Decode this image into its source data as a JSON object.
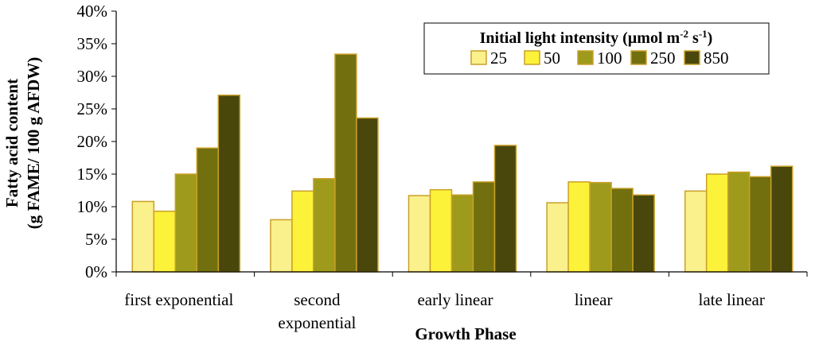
{
  "chart_data": {
    "type": "bar",
    "title": "",
    "xlabel": "Growth Phase",
    "ylabel_line1": "Fatty acid content",
    "ylabel_line2": "(g FAME/ 100 g AFDW)",
    "ylim": [
      0,
      40
    ],
    "yticks": [
      "0%",
      "5%",
      "10%",
      "15%",
      "20%",
      "25%",
      "30%",
      "35%",
      "40%"
    ],
    "categories": [
      [
        "first exponential"
      ],
      [
        "second",
        "exponential"
      ],
      [
        "early linear"
      ],
      [
        "linear"
      ],
      [
        "late linear"
      ]
    ],
    "legend_title": "Initial light intensity (µmol m",
    "legend_title_sup1": "-2",
    "legend_title_mid": " s",
    "legend_title_sup2": "-1",
    "legend_title_end": ")",
    "legend_position": "top-right",
    "series": [
      {
        "name": "25",
        "color": "#faf08c",
        "values": [
          10.8,
          8.0,
          11.7,
          10.6,
          12.4
        ]
      },
      {
        "name": "50",
        "color": "#fdf23a",
        "values": [
          9.3,
          12.4,
          12.6,
          13.8,
          15.0
        ]
      },
      {
        "name": "100",
        "color": "#9e9a1c",
        "values": [
          15.0,
          14.3,
          11.8,
          13.7,
          15.3
        ]
      },
      {
        "name": "250",
        "color": "#726f0e",
        "values": [
          19.0,
          33.4,
          13.8,
          12.8,
          14.6
        ]
      },
      {
        "name": "850",
        "color": "#4a470c",
        "values": [
          27.1,
          23.6,
          19.4,
          11.8,
          16.2
        ]
      }
    ]
  }
}
